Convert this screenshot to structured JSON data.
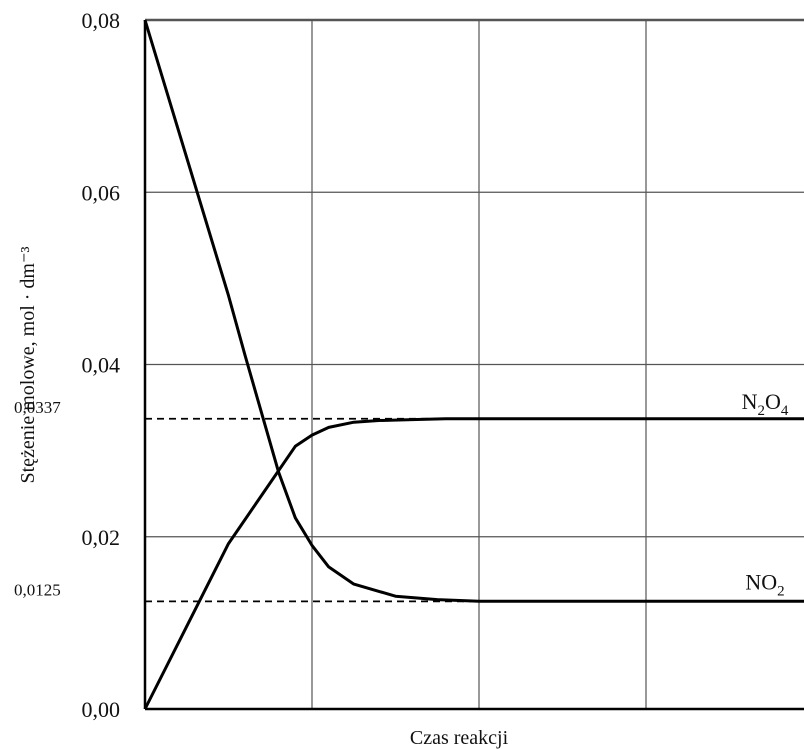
{
  "chart_data": {
    "type": "line",
    "xlabel": "Czas reakcji",
    "ylabel": "Stężenie molowe, mol · dm⁻³",
    "ylim": [
      0,
      0.08
    ],
    "xlim": [
      0,
      4
    ],
    "grid": true,
    "y_ticks": [
      {
        "value": 0.0,
        "label": "0,00"
      },
      {
        "value": 0.02,
        "label": "0,02"
      },
      {
        "value": 0.04,
        "label": "0,04"
      },
      {
        "value": 0.06,
        "label": "0,06"
      },
      {
        "value": 0.08,
        "label": "0,08"
      }
    ],
    "x_gridlines": [
      1,
      2,
      3
    ],
    "reference_lines": [
      {
        "value": 0.0337,
        "label": "0,0337",
        "style": "dashed"
      },
      {
        "value": 0.0125,
        "label": "0,0125",
        "style": "dashed"
      }
    ],
    "series": [
      {
        "name": "N₂O₄",
        "name_base": "N",
        "name_sub1": "2",
        "name_mid": "O",
        "name_sub2": "4",
        "label_value": 0.0337,
        "x": [
          0,
          0.5,
          0.9,
          1.0,
          1.1,
          1.25,
          1.4,
          1.6,
          1.8,
          2.0,
          3.0,
          4.0
        ],
        "y": [
          0,
          0.0192,
          0.0305,
          0.0318,
          0.0327,
          0.0333,
          0.0335,
          0.0336,
          0.0337,
          0.0337,
          0.0337,
          0.0337
        ]
      },
      {
        "name": "NO₂",
        "name_base": "NO",
        "name_sub1": "2",
        "label_value": 0.0125,
        "x": [
          0,
          0.5,
          0.6,
          0.8,
          0.9,
          1.0,
          1.1,
          1.25,
          1.5,
          1.75,
          2.0,
          3.0,
          4.0
        ],
        "y": [
          0.08,
          0.048,
          0.041,
          0.0275,
          0.0222,
          0.019,
          0.0165,
          0.0145,
          0.0131,
          0.0127,
          0.0125,
          0.0125,
          0.0125
        ]
      }
    ]
  }
}
